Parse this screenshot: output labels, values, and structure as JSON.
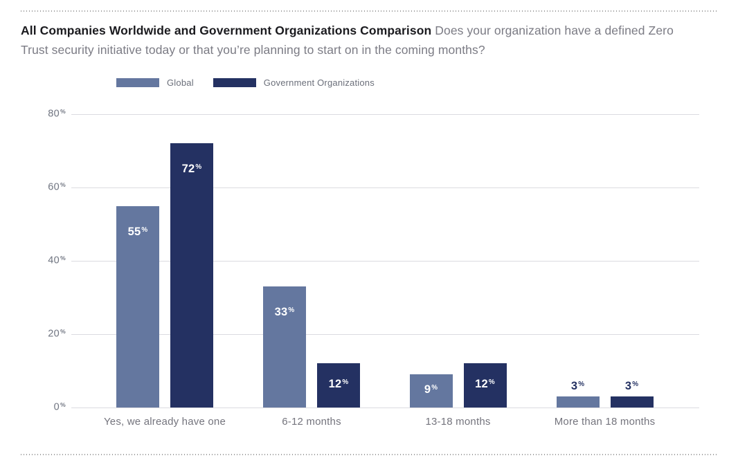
{
  "header": {
    "title_bold": "All Companies Worldwide and Government Organizations Comparison",
    "title_rest": " Does your organization have a defined Zero Trust security initiative today or that you’re planning to start on in the coming months?"
  },
  "chart_data": {
    "type": "bar",
    "title": "All Companies Worldwide and Government Organizations Comparison",
    "subtitle": "Does your organization have a defined Zero Trust security initiative today or that you’re planning to start on in the coming months?",
    "categories": [
      "Yes, we already have one",
      "6-12 months",
      "13-18 months",
      "More than 18 months"
    ],
    "series": [
      {
        "name": "Global",
        "color": "#64779F",
        "values": [
          55,
          33,
          9,
          3
        ]
      },
      {
        "name": "Government Organizations",
        "color": "#243162",
        "values": [
          72,
          12,
          12,
          3
        ]
      }
    ],
    "value_suffix": "%",
    "xlabel": "",
    "ylabel": "",
    "ylim": [
      0,
      80
    ],
    "yticks": [
      0,
      20,
      40,
      60,
      80
    ],
    "tick_suffix": "%",
    "grid": true,
    "legend_position": "top"
  },
  "colors": {
    "title_text": "#1b1b1f",
    "subtitle_text": "#7b7b84",
    "axis_text": "#6f7480",
    "category_text": "#74747d",
    "gridline": "#dbdbe0",
    "value_label_inside": "#ffffff",
    "value_label_above": "#243162",
    "dotted_rule": "#9c9c9c",
    "background": "#ffffff"
  }
}
